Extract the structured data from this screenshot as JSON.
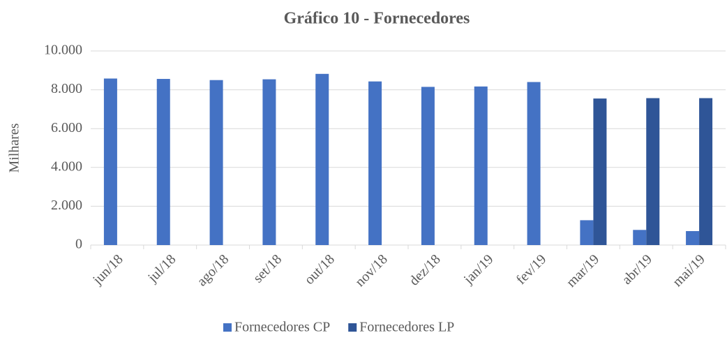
{
  "chart_data": {
    "type": "bar",
    "title": "Gráfico 10 - Fornecedores",
    "y_label": "Milhares",
    "categories": [
      "jun/18",
      "jul/18",
      "ago/18",
      "set/18",
      "out/18",
      "nov/18",
      "dez/18",
      "jan/19",
      "fev/19",
      "mar/19",
      "abr/19",
      "mai/19"
    ],
    "series": [
      {
        "name": "Fornecedores CP",
        "color": "#4472c4",
        "values": [
          8580,
          8560,
          8500,
          8540,
          8820,
          8430,
          8150,
          8170,
          8400,
          1280,
          780,
          720
        ]
      },
      {
        "name": "Fornecedores LP",
        "color": "#2f5597",
        "values": [
          null,
          null,
          null,
          null,
          null,
          null,
          null,
          null,
          null,
          7550,
          7570,
          7570
        ]
      }
    ],
    "ylim": [
      0,
      10000
    ],
    "yticks": [
      0,
      {
        "value": 2000,
        "label": "2.000"
      },
      {
        "value": 4000,
        "label": "4.000"
      },
      {
        "value": 6000,
        "label": "6.000"
      },
      {
        "value": 8000,
        "label": "8.000"
      },
      {
        "value": 10000,
        "label": "10.000"
      }
    ],
    "grid": true,
    "legend": "bottom"
  }
}
